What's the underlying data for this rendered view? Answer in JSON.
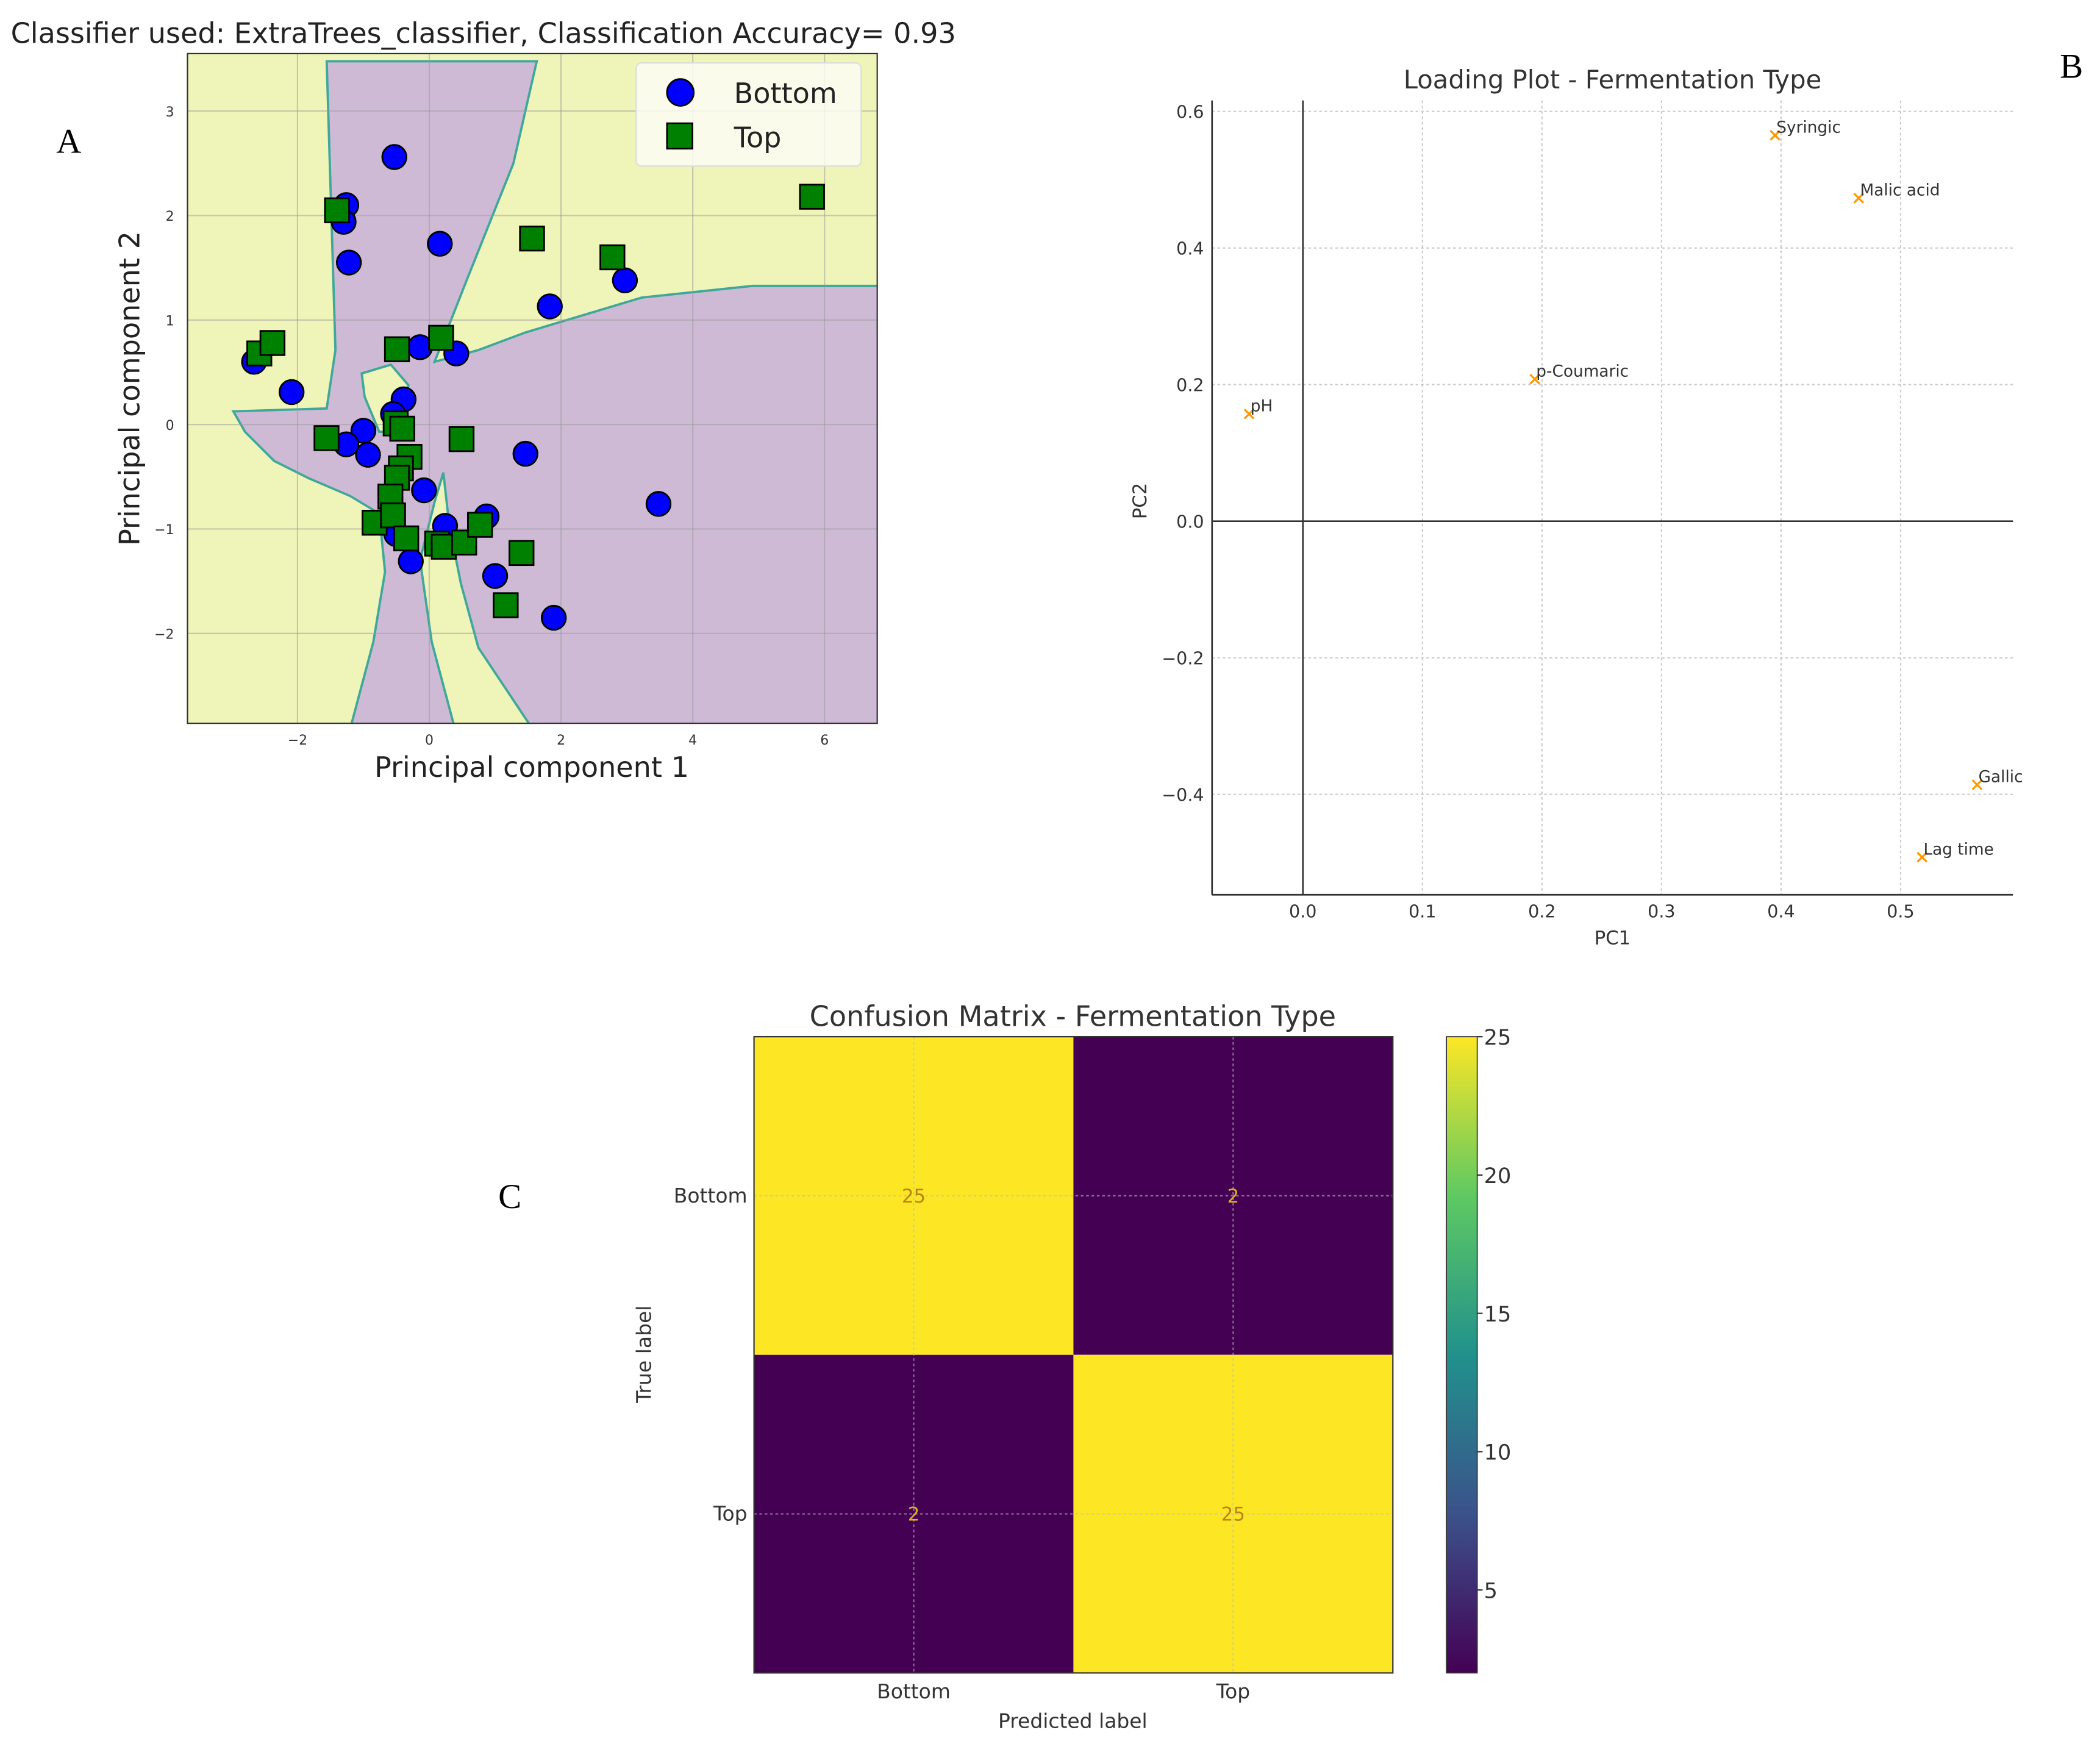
{
  "panel_labels": {
    "a": "A",
    "b": "B",
    "c": "C"
  },
  "chart_data": [
    {
      "type": "scatter",
      "panel": "A",
      "title": "Classifier used: ExtraTrees_classifier, Classification Accuracy= 0.93",
      "xlabel": "Principal component 1",
      "ylabel": "Principal component 2",
      "xlim": [
        -3.67,
        6.8
      ],
      "ylim": [
        -2.86,
        3.55
      ],
      "xticks": [
        -2,
        0,
        2,
        4,
        6
      ],
      "yticks": [
        -2,
        -1,
        0,
        1,
        2,
        3
      ],
      "grid": true,
      "legend_position": "top-right",
      "decision_region_colors": {
        "Bottom": "#cfbad6",
        "Top": "#eff5b9",
        "boundary": "#3fa89a"
      },
      "series": [
        {
          "name": "Bottom",
          "marker": "circle",
          "color": "#0000ff",
          "points": [
            [
              -0.53,
              2.56
            ],
            [
              -1.26,
              2.1
            ],
            [
              -1.3,
              1.94
            ],
            [
              -1.22,
              1.55
            ],
            [
              0.16,
              1.73
            ],
            [
              2.97,
              1.38
            ],
            [
              1.83,
              1.13
            ],
            [
              -0.14,
              0.74
            ],
            [
              0.41,
              0.68
            ],
            [
              -2.66,
              0.6
            ],
            [
              -2.09,
              0.31
            ],
            [
              -0.39,
              0.24
            ],
            [
              -0.55,
              0.1
            ],
            [
              -1.0,
              -0.06
            ],
            [
              -1.26,
              -0.19
            ],
            [
              -0.93,
              -0.29
            ],
            [
              1.46,
              -0.28
            ],
            [
              -0.08,
              -0.63
            ],
            [
              3.48,
              -0.76
            ],
            [
              0.87,
              -0.88
            ],
            [
              0.24,
              -0.97
            ],
            [
              -0.5,
              -1.05
            ],
            [
              -0.28,
              -1.31
            ],
            [
              1.0,
              -1.45
            ],
            [
              1.89,
              -1.85
            ]
          ]
        },
        {
          "name": "Top",
          "marker": "square",
          "color": "#008000",
          "points": [
            [
              -1.4,
              2.05
            ],
            [
              1.56,
              1.78
            ],
            [
              2.78,
              1.6
            ],
            [
              5.81,
              2.18
            ],
            [
              -2.58,
              0.68
            ],
            [
              -2.38,
              0.78
            ],
            [
              -0.49,
              0.72
            ],
            [
              0.18,
              0.83
            ],
            [
              -1.56,
              -0.13
            ],
            [
              -0.51,
              0.01
            ],
            [
              -0.41,
              -0.04
            ],
            [
              0.49,
              -0.14
            ],
            [
              -0.3,
              -0.31
            ],
            [
              -0.43,
              -0.42
            ],
            [
              -0.49,
              -0.51
            ],
            [
              -0.59,
              -0.69
            ],
            [
              -0.83,
              -0.94
            ],
            [
              -0.55,
              -0.87
            ],
            [
              -0.35,
              -1.09
            ],
            [
              0.12,
              -1.14
            ],
            [
              0.22,
              -1.17
            ],
            [
              0.53,
              -1.13
            ],
            [
              0.77,
              -0.96
            ],
            [
              1.4,
              -1.23
            ],
            [
              1.16,
              -1.73
            ]
          ]
        }
      ]
    },
    {
      "type": "scatter",
      "panel": "B",
      "title": "Loading Plot - Fermentation Type",
      "xlabel": "PC1",
      "ylabel": "PC2",
      "xlim": [
        -0.076,
        0.594
      ],
      "ylim": [
        -0.547,
        0.616
      ],
      "xticks": [
        "0.0",
        "0.1",
        "0.2",
        "0.3",
        "0.4",
        "0.5"
      ],
      "yticks": [
        "−0.4",
        "−0.2",
        "0.0",
        "0.2",
        "0.4",
        "0.6"
      ],
      "ytick_values": [
        -0.4,
        -0.2,
        0.0,
        0.2,
        0.4,
        0.6
      ],
      "xtick_values": [
        0.0,
        0.1,
        0.2,
        0.3,
        0.4,
        0.5
      ],
      "grid": true,
      "marker_color": "#ff9900",
      "points": [
        {
          "label": "Syringic",
          "x": 0.395,
          "y": 0.565
        },
        {
          "label": "Malic acid",
          "x": 0.465,
          "y": 0.473
        },
        {
          "label": "p-Coumaric",
          "x": 0.194,
          "y": 0.208
        },
        {
          "label": "pH",
          "x": -0.045,
          "y": 0.157
        },
        {
          "label": "Gallic",
          "x": 0.564,
          "y": -0.386
        },
        {
          "label": "Lag time",
          "x": 0.518,
          "y": -0.492
        }
      ]
    },
    {
      "type": "heatmap",
      "panel": "C",
      "title": "Confusion Matrix - Fermentation Type",
      "xlabel": "Predicted label",
      "ylabel": "True label",
      "x_categories": [
        "Bottom",
        "Top"
      ],
      "y_categories": [
        "Bottom",
        "Top"
      ],
      "values": [
        [
          25,
          2
        ],
        [
          2,
          25
        ]
      ],
      "colormap": "viridis",
      "colorbar_range": [
        2,
        25
      ],
      "colorbar_ticks": [
        5,
        10,
        15,
        20,
        25
      ]
    }
  ]
}
